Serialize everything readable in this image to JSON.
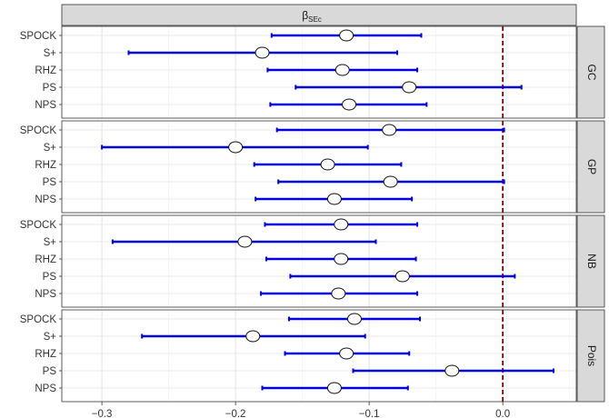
{
  "chart_data": {
    "type": "forest",
    "title": "β",
    "title_subscript": "SEc",
    "xlim": [
      -0.33,
      0.055
    ],
    "x_ticks": [
      -0.3,
      -0.2,
      -0.1,
      0.0
    ],
    "x_tick_labels": [
      "−0.3",
      "−0.2",
      "−0.1",
      "0.0"
    ],
    "reference_line_x": 0.0,
    "categories": [
      "SPOCK",
      "S+",
      "RHZ",
      "PS",
      "NPS"
    ],
    "grid": true,
    "colors": {
      "interval": "#0000e0",
      "reference": "#8b0000",
      "strip": "#d9d9d9",
      "point_fill": "#ffffff"
    },
    "panels": [
      {
        "label": "GC",
        "rows": [
          {
            "name": "SPOCK",
            "est": -0.117,
            "lo": -0.173,
            "hi": -0.061
          },
          {
            "name": "S+",
            "est": -0.18,
            "lo": -0.28,
            "hi": -0.079
          },
          {
            "name": "RHZ",
            "est": -0.12,
            "lo": -0.176,
            "hi": -0.064
          },
          {
            "name": "PS",
            "est": -0.07,
            "lo": -0.155,
            "hi": 0.014
          },
          {
            "name": "NPS",
            "est": -0.115,
            "lo": -0.174,
            "hi": -0.057
          }
        ]
      },
      {
        "label": "GP",
        "rows": [
          {
            "name": "SPOCK",
            "est": -0.085,
            "lo": -0.169,
            "hi": 0.001
          },
          {
            "name": "S+",
            "est": -0.2,
            "lo": -0.3,
            "hi": -0.101
          },
          {
            "name": "RHZ",
            "est": -0.131,
            "lo": -0.186,
            "hi": -0.076
          },
          {
            "name": "PS",
            "est": -0.084,
            "lo": -0.168,
            "hi": 0.001
          },
          {
            "name": "NPS",
            "est": -0.126,
            "lo": -0.185,
            "hi": -0.068
          }
        ]
      },
      {
        "label": "NB",
        "rows": [
          {
            "name": "SPOCK",
            "est": -0.121,
            "lo": -0.178,
            "hi": -0.064
          },
          {
            "name": "S+",
            "est": -0.193,
            "lo": -0.292,
            "hi": -0.095
          },
          {
            "name": "RHZ",
            "est": -0.121,
            "lo": -0.177,
            "hi": -0.065
          },
          {
            "name": "PS",
            "est": -0.075,
            "lo": -0.159,
            "hi": 0.009
          },
          {
            "name": "NPS",
            "est": -0.123,
            "lo": -0.181,
            "hi": -0.064
          }
        ]
      },
      {
        "label": "Pois",
        "rows": [
          {
            "name": "SPOCK",
            "est": -0.111,
            "lo": -0.16,
            "hi": -0.062
          },
          {
            "name": "S+",
            "est": -0.187,
            "lo": -0.27,
            "hi": -0.103
          },
          {
            "name": "RHZ",
            "est": -0.117,
            "lo": -0.163,
            "hi": -0.07
          },
          {
            "name": "PS",
            "est": -0.038,
            "lo": -0.112,
            "hi": 0.038
          },
          {
            "name": "NPS",
            "est": -0.126,
            "lo": -0.18,
            "hi": -0.071
          }
        ]
      }
    ]
  }
}
